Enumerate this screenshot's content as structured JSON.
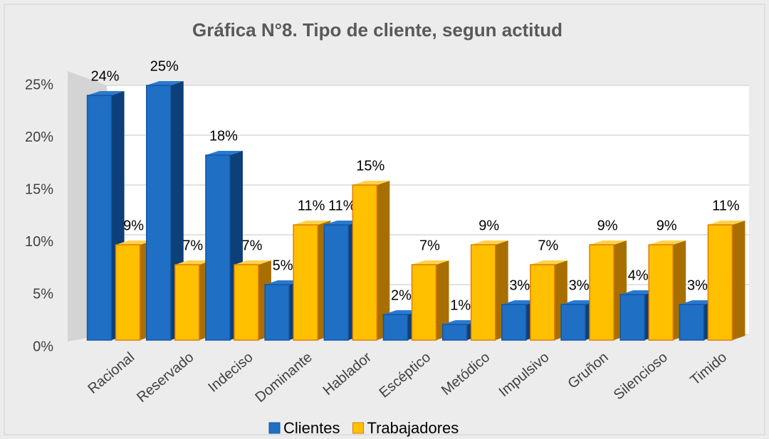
{
  "chart_data": {
    "type": "bar",
    "title": "Gráfica N°8. Tipo de cliente, segun  actitud",
    "categories": [
      "Racional",
      "Reservado",
      "Indeciso",
      "Dominante",
      "Hablador",
      "Escéptico",
      "Metódico",
      "Impulsivo",
      "Gruñon",
      "Silencioso",
      "Timido"
    ],
    "series": [
      {
        "name": "Clientes",
        "color": "#1f6fc5",
        "values": [
          24,
          25,
          18,
          5,
          11,
          2,
          1,
          3,
          3,
          4,
          3
        ],
        "value_labels": [
          "24%",
          "25%",
          "18%",
          "5%",
          "11%",
          "2%",
          "1%",
          "3%",
          "3%",
          "4%",
          "3%"
        ]
      },
      {
        "name": "Trabajadores",
        "color": "#ffc000",
        "values": [
          9,
          7,
          7,
          11,
          15,
          7,
          9,
          7,
          9,
          9,
          11
        ],
        "value_labels": [
          "9%",
          "7%",
          "7%",
          "11%",
          "15%",
          "7%",
          "9%",
          "7%",
          "9%",
          "9%",
          "11%"
        ]
      }
    ],
    "ylim": [
      0,
      25
    ],
    "yticks": [
      {
        "value": 0,
        "label": "0%"
      },
      {
        "value": 5,
        "label": "5%"
      },
      {
        "value": 10,
        "label": "10%"
      },
      {
        "value": 15,
        "label": "15%"
      },
      {
        "value": 20,
        "label": "20%"
      },
      {
        "value": 25,
        "label": "25%"
      }
    ],
    "grid": true,
    "legend": "bottom"
  }
}
